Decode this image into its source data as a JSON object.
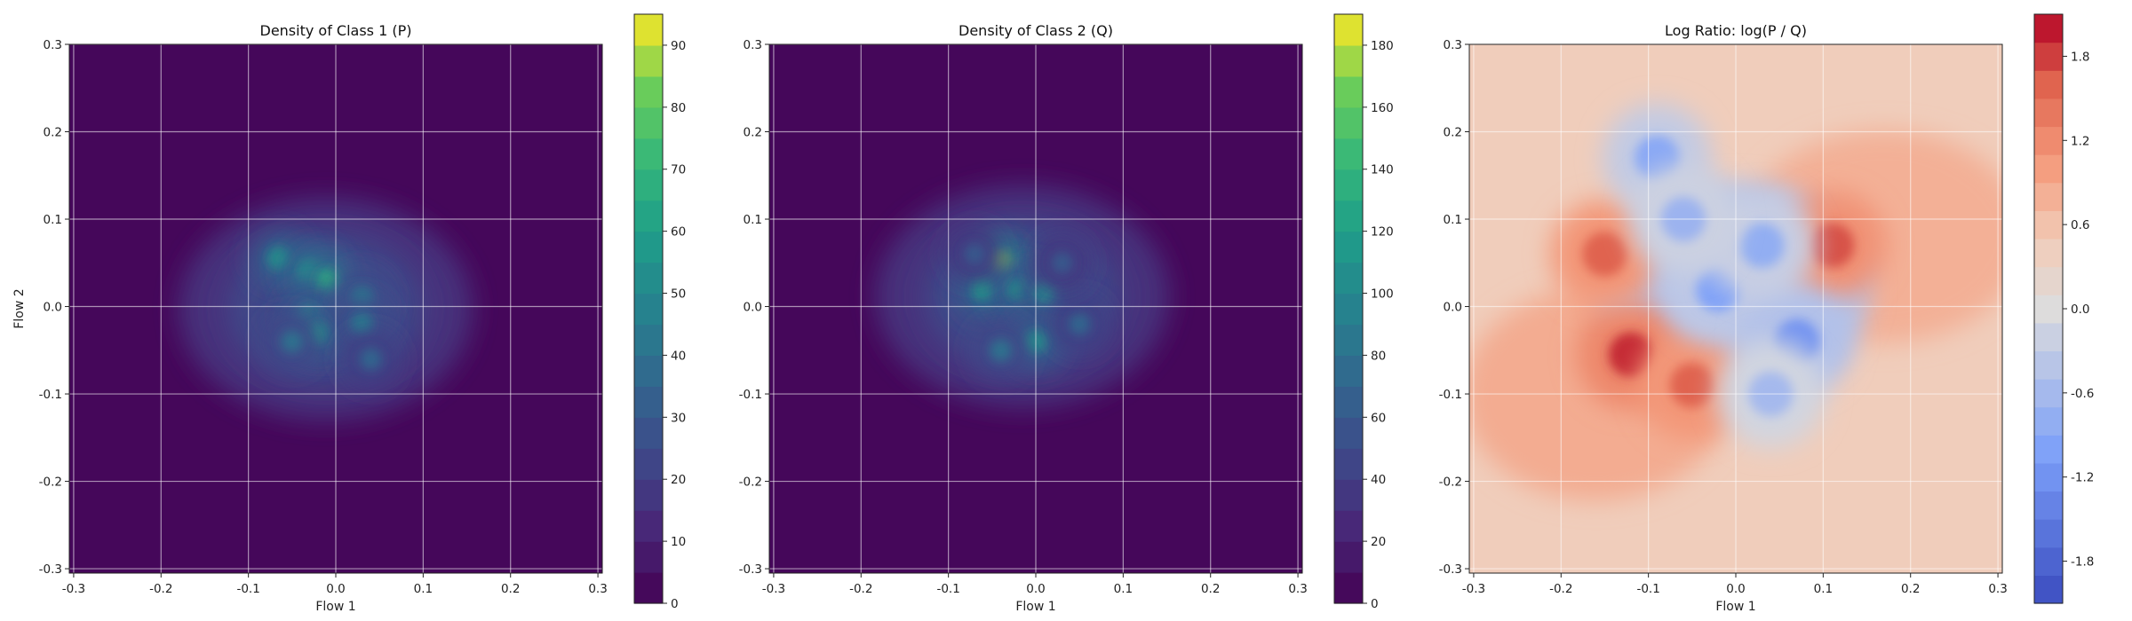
{
  "chart_data": [
    {
      "type": "heatmap",
      "title": "Density of Class 1 (P)",
      "xlabel": "Flow 1",
      "ylabel": "Flow 2",
      "xlim": [
        -0.305,
        0.305
      ],
      "ylim": [
        -0.305,
        0.3
      ],
      "x_ticks": [
        "-0.3",
        "-0.2",
        "-0.1",
        "0.0",
        "0.1",
        "0.2",
        "0.3"
      ],
      "y_ticks": [
        "0.3",
        "0.2",
        "0.1",
        "0.0",
        "-0.1",
        "-0.2",
        "-0.3"
      ],
      "grid": true,
      "colormap": "viridis",
      "colorbar": {
        "min": 0,
        "max": 95,
        "ticks": [
          "0",
          "10",
          "20",
          "30",
          "40",
          "50",
          "60",
          "70",
          "80",
          "90"
        ],
        "levels": 19
      },
      "hotspots": [
        {
          "x": -0.065,
          "y": 0.055,
          "value": 55
        },
        {
          "x": -0.03,
          "y": 0.04,
          "value": 60
        },
        {
          "x": -0.01,
          "y": 0.03,
          "value": 65
        },
        {
          "x": -0.03,
          "y": -0.01,
          "value": 50
        },
        {
          "x": -0.02,
          "y": -0.03,
          "value": 55
        },
        {
          "x": 0.03,
          "y": 0.01,
          "value": 45
        },
        {
          "x": 0.03,
          "y": -0.02,
          "value": 45
        },
        {
          "x": -0.05,
          "y": -0.04,
          "value": 40
        },
        {
          "x": 0.04,
          "y": -0.06,
          "value": 35
        }
      ]
    },
    {
      "type": "heatmap",
      "title": "Density of Class 2 (Q)",
      "xlabel": "Flow 1",
      "ylabel": "",
      "xlim": [
        -0.305,
        0.305
      ],
      "ylim": [
        -0.305,
        0.3
      ],
      "x_ticks": [
        "-0.3",
        "-0.2",
        "-0.1",
        "0.0",
        "0.1",
        "0.2",
        "0.3"
      ],
      "y_ticks": [
        "0.3",
        "0.2",
        "0.1",
        "0.0",
        "-0.1",
        "-0.2",
        "-0.3"
      ],
      "grid": true,
      "colormap": "viridis",
      "colorbar": {
        "min": 0,
        "max": 190,
        "ticks": [
          "0",
          "20",
          "40",
          "60",
          "80",
          "100",
          "120",
          "140",
          "160",
          "180"
        ],
        "levels": 19
      },
      "hotspots": [
        {
          "x": -0.04,
          "y": 0.05,
          "value": 170
        },
        {
          "x": -0.06,
          "y": 0.02,
          "value": 120
        },
        {
          "x": -0.02,
          "y": 0.02,
          "value": 110
        },
        {
          "x": 0.01,
          "y": 0.015,
          "value": 100
        },
        {
          "x": 0.0,
          "y": -0.04,
          "value": 110
        },
        {
          "x": -0.04,
          "y": -0.05,
          "value": 80
        },
        {
          "x": 0.05,
          "y": -0.02,
          "value": 70
        },
        {
          "x": -0.07,
          "y": 0.06,
          "value": 60
        },
        {
          "x": 0.03,
          "y": 0.05,
          "value": 60
        }
      ]
    },
    {
      "type": "heatmap",
      "title": "Log Ratio: log(P / Q)",
      "xlabel": "Flow 1",
      "ylabel": "",
      "xlim": [
        -0.305,
        0.305
      ],
      "ylim": [
        -0.305,
        0.3
      ],
      "x_ticks": [
        "-0.3",
        "-0.2",
        "-0.1",
        "0.0",
        "0.1",
        "0.2",
        "0.3"
      ],
      "y_ticks": [
        "0.3",
        "0.2",
        "0.1",
        "0.0",
        "-0.1",
        "-0.2",
        "-0.3"
      ],
      "grid": true,
      "colormap": "coolwarm",
      "colorbar": {
        "min": -2.1,
        "max": 2.1,
        "ticks": [
          "-1.8",
          "-1.2",
          "-0.6",
          "0.0",
          "0.6",
          "1.2",
          "1.8"
        ],
        "levels": 21
      },
      "background_value": 0.45,
      "hotspots": [
        {
          "x": -0.12,
          "y": -0.055,
          "value": 1.9
        },
        {
          "x": -0.15,
          "y": 0.06,
          "value": 1.6
        },
        {
          "x": -0.05,
          "y": -0.09,
          "value": 1.6
        },
        {
          "x": 0.11,
          "y": 0.07,
          "value": 1.7
        },
        {
          "x": -0.02,
          "y": 0.02,
          "value": -1.0
        },
        {
          "x": 0.07,
          "y": -0.04,
          "value": -1.2
        },
        {
          "x": -0.09,
          "y": 0.17,
          "value": -0.9
        },
        {
          "x": 0.03,
          "y": 0.07,
          "value": -0.8
        },
        {
          "x": -0.06,
          "y": 0.1,
          "value": -0.7
        },
        {
          "x": 0.04,
          "y": -0.1,
          "value": -0.6
        }
      ]
    }
  ]
}
